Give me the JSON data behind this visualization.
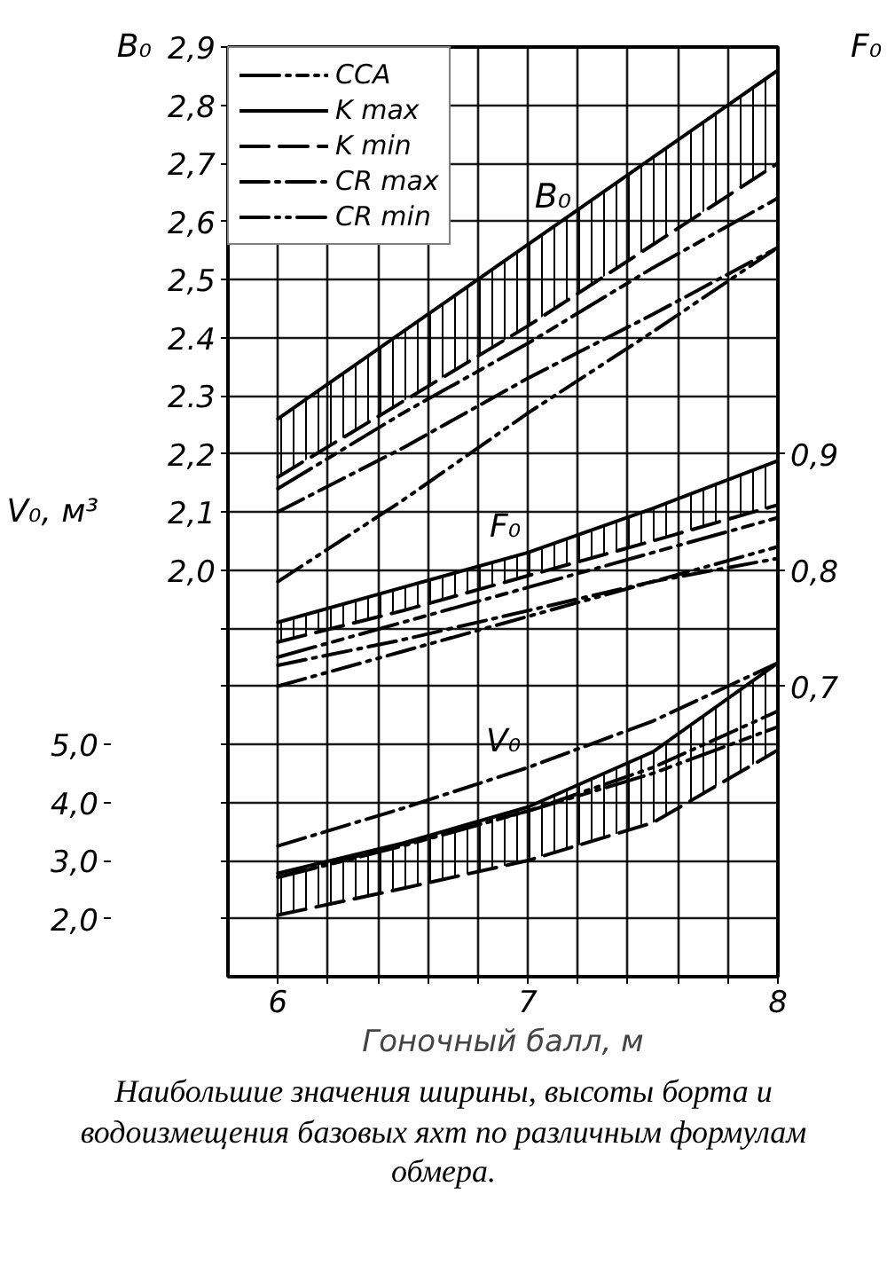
{
  "chart_data": {
    "type": "line",
    "xlabel": "Гоночный балл, м",
    "ylabel": "B₀",
    "y2label": "F₀",
    "y3label": "V₀, м³",
    "xlim": [
      5.8,
      8.0
    ],
    "ylim": [
      1.3,
      2.9
    ],
    "y2lim": [
      0.45,
      1.25
    ],
    "y3lim": [
      1.0,
      17.0
    ],
    "xticks": [
      {
        "value": 6,
        "label": "6"
      },
      {
        "value": 6.2,
        "label": null
      },
      {
        "value": 6.4,
        "label": null
      },
      {
        "value": 6.6,
        "label": null
      },
      {
        "value": 6.8,
        "label": null
      },
      {
        "value": 7,
        "label": "7"
      },
      {
        "value": 7.2,
        "label": null
      },
      {
        "value": 7.4,
        "label": null
      },
      {
        "value": 7.6,
        "label": null
      },
      {
        "value": 7.8,
        "label": null
      },
      {
        "value": 8,
        "label": "8"
      }
    ],
    "yticks": [
      {
        "value": 1.4,
        "label": null
      },
      {
        "value": 1.5,
        "label": null
      },
      {
        "value": 1.6,
        "label": null
      },
      {
        "value": 1.7,
        "label": null
      },
      {
        "value": 1.8,
        "label": null
      },
      {
        "value": 1.9,
        "label": null
      },
      {
        "value": 2.0,
        "label": "2,0"
      },
      {
        "value": 2.1,
        "label": "2,1"
      },
      {
        "value": 2.2,
        "label": "2,2"
      },
      {
        "value": 2.3,
        "label": "2.3"
      },
      {
        "value": 2.4,
        "label": "2.4"
      },
      {
        "value": 2.5,
        "label": "2,5"
      },
      {
        "value": 2.6,
        "label": "2,6"
      },
      {
        "value": 2.7,
        "label": "2,7"
      },
      {
        "value": 2.8,
        "label": "2,8"
      },
      {
        "value": 2.9,
        "label": "2,9"
      }
    ],
    "y2ticks": [
      {
        "value": 0.7,
        "label": "0,7"
      },
      {
        "value": 0.8,
        "label": "0,8"
      },
      {
        "value": 0.9,
        "label": "0,9"
      }
    ],
    "y3ticks": [
      {
        "value": 2.0,
        "label": "2,0"
      },
      {
        "value": 3.0,
        "label": "3,0"
      },
      {
        "value": 4.0,
        "label": "4,0"
      },
      {
        "value": 5.0,
        "label": "5,0"
      }
    ],
    "grid": true,
    "legend": "top left",
    "x": [
      6,
      6.5,
      7,
      7.5,
      8
    ],
    "series": [
      {
        "name": "CCA",
        "color": "#000000",
        "line_style": "longdashdot",
        "values": [
          2.14,
          2.27,
          2.39,
          2.52,
          2.64
        ]
      },
      {
        "name": "K max",
        "color": "#000000",
        "line_style": "solid",
        "values": [
          2.26,
          2.41,
          2.56,
          2.71,
          2.86
        ],
        "lower": [
          2.16,
          2.29,
          2.42,
          2.56,
          2.7
        ],
        "upper": [
          2.26,
          2.41,
          2.56,
          2.71,
          2.86
        ]
      },
      {
        "name": "K min",
        "color": "#000000",
        "line_style": "dashed",
        "values": [
          2.16,
          2.29,
          2.42,
          2.56,
          2.7
        ]
      },
      {
        "name": "CR max",
        "color": "#000000",
        "line_style": "dashdot",
        "values": [
          2.1,
          2.21,
          2.33,
          2.44,
          2.555
        ]
      },
      {
        "name": "CR min",
        "color": "#000000",
        "line_style": "dashdotdot",
        "values": [
          1.98,
          2.12,
          2.27,
          2.41,
          2.555
        ]
      },
      {
        "color": "#000000",
        "line_style": "longdashdot",
        "axis": "y2",
        "values": [
          0.725,
          0.755,
          0.785,
          0.815,
          0.845
        ]
      },
      {
        "name": "F₀",
        "color": "#000000",
        "line_style": "solid",
        "axis": "y2",
        "values": [
          0.755,
          0.785,
          0.815,
          0.853,
          0.894
        ],
        "lower": [
          0.738,
          0.765,
          0.795,
          0.825,
          0.856
        ],
        "upper": [
          0.755,
          0.785,
          0.815,
          0.853,
          0.894
        ]
      },
      {
        "color": "#000000",
        "line_style": "dashed",
        "axis": "y2",
        "values": [
          0.738,
          0.765,
          0.795,
          0.825,
          0.856
        ]
      },
      {
        "color": "#000000",
        "line_style": "dashdot",
        "axis": "y2",
        "values": [
          0.718,
          0.74,
          0.765,
          0.79,
          0.81
        ]
      },
      {
        "color": "#000000",
        "line_style": "dashdotdot",
        "axis": "y2",
        "values": [
          0.7,
          0.73,
          0.76,
          0.79,
          0.82
        ]
      },
      {
        "color": "#000000",
        "line_style": "longdashdot",
        "axis": "y3",
        "values": [
          2.71,
          3.25,
          3.85,
          4.5,
          5.3
        ]
      },
      {
        "color": "#000000",
        "line_style": "solid",
        "axis": "y3",
        "values": [
          2.78,
          3.3,
          3.92,
          4.87,
          6.4
        ],
        "lower": [
          2.06,
          2.52,
          3.0,
          3.65,
          4.9
        ],
        "upper": [
          2.78,
          3.3,
          3.92,
          4.87,
          6.4
        ]
      },
      {
        "color": "#000000",
        "line_style": "dashed",
        "axis": "y3",
        "values": [
          2.06,
          2.52,
          3.0,
          3.65,
          4.9
        ]
      },
      {
        "name": "V₀",
        "color": "#000000",
        "line_style": "dashdot",
        "axis": "y3",
        "values": [
          3.25,
          3.9,
          4.6,
          5.4,
          6.4
        ]
      },
      {
        "color": "#000000",
        "line_style": "dashdotdot",
        "axis": "y3",
        "values": [
          2.72,
          3.28,
          3.85,
          4.6,
          5.57
        ]
      }
    ],
    "annotations": [
      {
        "text": "B₀",
        "x": 7.1,
        "y": 2.59
      },
      "Наибольшие значения ширины, высоты борта и водоизмещения базовых яхт по различным формулам обмера."
    ]
  }
}
